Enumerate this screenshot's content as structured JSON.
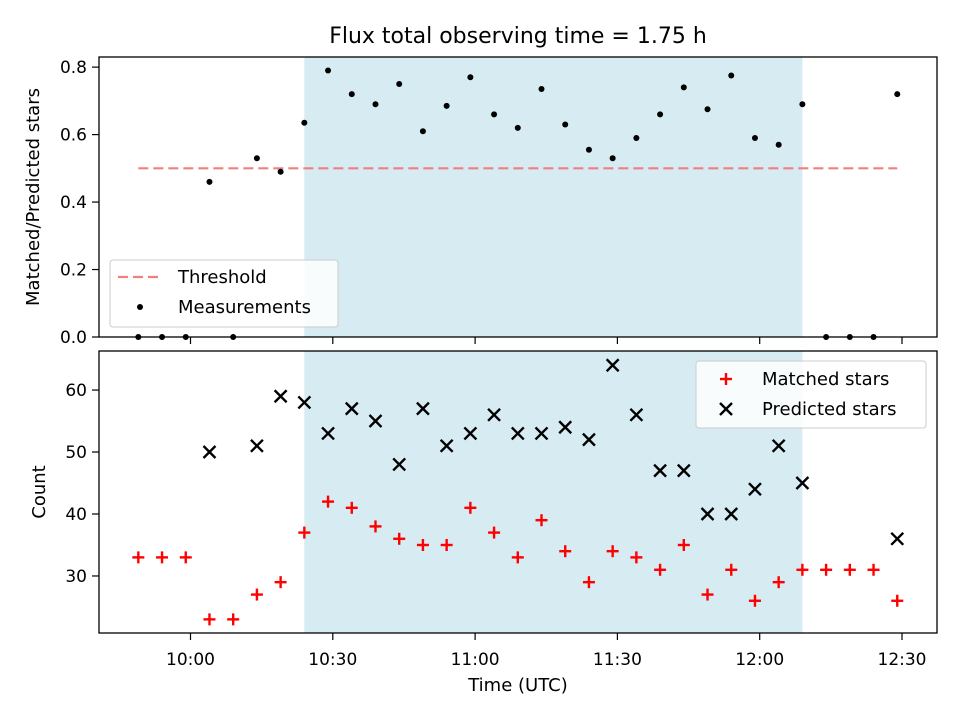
{
  "chart_data": [
    {
      "type": "scatter",
      "title": "Flux total observing time = 1.75 h",
      "ylabel": "Matched/Predicted stars",
      "ylim": [
        0,
        0.83
      ],
      "yticks": [
        "0.0",
        "0.2",
        "0.4",
        "0.6",
        "0.8"
      ],
      "shaded_interval": [
        "10:24",
        "12:09"
      ],
      "threshold": 0.5,
      "legend": {
        "position": "lower-left",
        "entries": [
          "Threshold",
          "Measurements"
        ]
      },
      "series": [
        {
          "name": "Measurements",
          "x": [
            "09:49",
            "09:54",
            "09:59",
            "10:04",
            "10:09",
            "10:14",
            "10:19",
            "10:24",
            "10:29",
            "10:34",
            "10:39",
            "10:44",
            "10:49",
            "10:54",
            "10:59",
            "11:04",
            "11:09",
            "11:14",
            "11:19",
            "11:24",
            "11:29",
            "11:34",
            "11:39",
            "11:44",
            "11:49",
            "11:54",
            "11:59",
            "12:04",
            "12:09",
            "12:14",
            "12:19",
            "12:24",
            "12:29"
          ],
          "values": [
            0.0,
            0.0,
            0.0,
            0.46,
            0.0,
            0.53,
            0.49,
            0.635,
            0.79,
            0.72,
            0.69,
            0.75,
            0.61,
            0.685,
            0.77,
            0.66,
            0.62,
            0.735,
            0.63,
            0.555,
            0.53,
            0.59,
            0.66,
            0.74,
            0.675,
            0.775,
            0.59,
            0.57,
            0.69,
            0.0,
            0.0,
            0.0,
            0.72
          ]
        }
      ]
    },
    {
      "type": "scatter",
      "xlabel": "Time (UTC)",
      "ylabel": "Count",
      "ylim": [
        20.8,
        66.3
      ],
      "yticks": [
        "30",
        "40",
        "50",
        "60"
      ],
      "xticks": [
        "10:00",
        "10:30",
        "11:00",
        "11:30",
        "12:00",
        "12:30"
      ],
      "legend": {
        "position": "top-right",
        "entries": [
          "Matched stars",
          "Predicted stars"
        ]
      },
      "series": [
        {
          "name": "Matched stars",
          "color": "#ff0000",
          "x": [
            "09:49",
            "09:54",
            "09:59",
            "10:04",
            "10:09",
            "10:14",
            "10:19",
            "10:24",
            "10:29",
            "10:34",
            "10:39",
            "10:44",
            "10:49",
            "10:54",
            "10:59",
            "11:04",
            "11:09",
            "11:14",
            "11:19",
            "11:24",
            "11:29",
            "11:34",
            "11:39",
            "11:44",
            "11:49",
            "11:54",
            "11:59",
            "12:04",
            "12:09",
            "12:14",
            "12:19",
            "12:24",
            "12:29"
          ],
          "values": [
            33,
            33,
            33,
            23,
            23,
            27,
            29,
            37,
            42,
            41,
            38,
            36,
            35,
            35,
            41,
            37,
            33,
            39,
            34,
            29,
            34,
            33,
            31,
            35,
            27,
            31,
            26,
            29,
            31,
            31,
            31,
            31,
            26
          ]
        },
        {
          "name": "Predicted stars",
          "color": "#000000",
          "x": [
            "10:04",
            "10:14",
            "10:19",
            "10:24",
            "10:29",
            "10:34",
            "10:39",
            "10:44",
            "10:49",
            "10:54",
            "10:59",
            "11:04",
            "11:09",
            "11:14",
            "11:19",
            "11:24",
            "11:29",
            "11:34",
            "11:39",
            "11:44",
            "11:49",
            "11:54",
            "11:59",
            "12:04",
            "12:09",
            "12:29"
          ],
          "values": [
            50,
            51,
            59,
            58,
            53,
            57,
            55,
            48,
            57,
            51,
            53,
            56,
            53,
            53,
            54,
            52,
            64,
            56,
            47,
            47,
            40,
            40,
            44,
            51,
            45,
            36
          ]
        }
      ]
    }
  ]
}
